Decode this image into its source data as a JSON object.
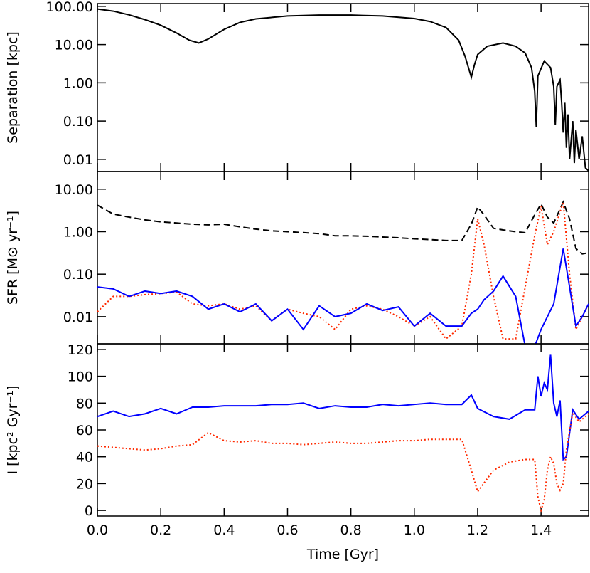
{
  "chart_data": [
    {
      "type": "line",
      "ylabel": "Separation [kpc]",
      "log_y": true,
      "xlim": [
        0,
        1.55
      ],
      "ylim": [
        0.0048,
        118
      ],
      "yticks": [
        {
          "value": 100,
          "label": "100.00"
        },
        {
          "value": 10,
          "label": "10.00"
        },
        {
          "value": 1,
          "label": "1.00"
        },
        {
          "value": 0.1,
          "label": "0.10"
        },
        {
          "value": 0.01,
          "label": "0.01"
        }
      ],
      "x": [
        0,
        0.05,
        0.1,
        0.15,
        0.2,
        0.25,
        0.29,
        0.32,
        0.35,
        0.4,
        0.45,
        0.5,
        0.6,
        0.7,
        0.8,
        0.9,
        1.0,
        1.05,
        1.1,
        1.14,
        1.16,
        1.18,
        1.19,
        1.2,
        1.23,
        1.28,
        1.32,
        1.35,
        1.37,
        1.38,
        1.385,
        1.39,
        1.41,
        1.43,
        1.44,
        1.445,
        1.45,
        1.46,
        1.465,
        1.47,
        1.475,
        1.48,
        1.485,
        1.49,
        1.5,
        1.505,
        1.51,
        1.52,
        1.53,
        1.54,
        1.55
      ],
      "series": [
        {
          "color": "#000000",
          "style": "solid",
          "values": [
            85,
            75,
            60,
            45,
            32,
            20,
            13,
            11,
            14,
            25,
            38,
            47,
            56,
            59,
            59,
            56,
            48,
            40,
            28,
            13,
            5,
            1.4,
            3,
            5.5,
            9,
            11,
            9,
            6,
            2.5,
            0.6,
            0.07,
            1.5,
            3.7,
            2.5,
            0.8,
            0.08,
            0.8,
            1.2,
            0.3,
            0.05,
            0.3,
            0.02,
            0.15,
            0.01,
            0.1,
            0.008,
            0.06,
            0.01,
            0.04,
            0.006,
            0.005
          ]
        }
      ]
    },
    {
      "type": "line",
      "ylabel": "SFR [M⊙ yr⁻¹]",
      "log_y": true,
      "xlim": [
        0,
        1.55
      ],
      "ylim": [
        0.0023,
        26
      ],
      "yticks": [
        {
          "value": 10,
          "label": "10.00"
        },
        {
          "value": 1,
          "label": "1.00"
        },
        {
          "value": 0.1,
          "label": "0.10"
        },
        {
          "value": 0.01,
          "label": "0.01"
        }
      ],
      "x": [
        0,
        0.05,
        0.1,
        0.15,
        0.2,
        0.25,
        0.3,
        0.35,
        0.4,
        0.45,
        0.5,
        0.55,
        0.6,
        0.65,
        0.7,
        0.75,
        0.8,
        0.85,
        0.9,
        0.95,
        1.0,
        1.05,
        1.1,
        1.15,
        1.18,
        1.2,
        1.22,
        1.25,
        1.28,
        1.32,
        1.35,
        1.38,
        1.4,
        1.42,
        1.44,
        1.47,
        1.49,
        1.51,
        1.53,
        1.55
      ],
      "series": [
        {
          "color": "#000000",
          "style": "dashed",
          "values": [
            4.2,
            2.6,
            2.2,
            1.9,
            1.7,
            1.6,
            1.5,
            1.45,
            1.5,
            1.3,
            1.15,
            1.05,
            1.0,
            0.95,
            0.9,
            0.8,
            0.8,
            0.78,
            0.75,
            0.72,
            0.68,
            0.65,
            0.62,
            0.62,
            1.5,
            3.8,
            2.5,
            1.2,
            1.1,
            1.0,
            0.95,
            2.5,
            4.5,
            2.2,
            1.6,
            5.0,
            2.0,
            0.4,
            0.3,
            0.32
          ]
        },
        {
          "color": "#ff2a00",
          "style": "dotted",
          "values": [
            0.013,
            0.03,
            0.03,
            0.033,
            0.035,
            0.038,
            0.02,
            0.018,
            0.02,
            0.015,
            0.018,
            0.008,
            0.015,
            0.012,
            0.01,
            0.005,
            0.015,
            0.018,
            0.015,
            0.01,
            0.006,
            0.01,
            0.003,
            0.006,
            0.1,
            2.0,
            0.5,
            0.03,
            0.003,
            0.003,
            0.05,
            0.8,
            4.0,
            0.5,
            1.0,
            5.0,
            0.1,
            0.005,
            0.01,
            0.02
          ]
        },
        {
          "color": "#0000ff",
          "style": "solid",
          "values": [
            0.05,
            0.045,
            0.03,
            0.04,
            0.035,
            0.04,
            0.03,
            0.015,
            0.02,
            0.013,
            0.02,
            0.008,
            0.015,
            0.005,
            0.018,
            0.01,
            0.012,
            0.02,
            0.014,
            0.017,
            0.006,
            0.012,
            0.006,
            0.006,
            0.012,
            0.015,
            0.025,
            0.04,
            0.09,
            0.03,
            0.002,
            0.002,
            0.005,
            0.01,
            0.02,
            0.4,
            0.05,
            0.006,
            0.01,
            0.02
          ]
        }
      ]
    },
    {
      "type": "line",
      "ylabel": "I [kpc² Gyr⁻¹]",
      "xlabel": "Time [Gyr]",
      "xlim": [
        0,
        1.55
      ],
      "ylim": [
        -4.2,
        124.2
      ],
      "xticks": [
        {
          "value": 0,
          "label": "0.0"
        },
        {
          "value": 0.2,
          "label": "0.2"
        },
        {
          "value": 0.4,
          "label": "0.4"
        },
        {
          "value": 0.6,
          "label": "0.6"
        },
        {
          "value": 0.8,
          "label": "0.8"
        },
        {
          "value": 1,
          "label": "1.0"
        },
        {
          "value": 1.2,
          "label": "1.2"
        },
        {
          "value": 1.4,
          "label": "1.4"
        }
      ],
      "yticks": [
        0,
        20,
        40,
        60,
        80,
        100,
        120
      ],
      "x": [
        0,
        0.05,
        0.1,
        0.15,
        0.2,
        0.25,
        0.3,
        0.35,
        0.4,
        0.45,
        0.5,
        0.55,
        0.6,
        0.65,
        0.7,
        0.75,
        0.8,
        0.85,
        0.9,
        0.95,
        1.0,
        1.05,
        1.1,
        1.15,
        1.18,
        1.2,
        1.25,
        1.3,
        1.35,
        1.38,
        1.39,
        1.4,
        1.41,
        1.42,
        1.43,
        1.44,
        1.45,
        1.46,
        1.47,
        1.48,
        1.5,
        1.52,
        1.55
      ],
      "series": [
        {
          "color": "#0000ff",
          "style": "solid",
          "values": [
            70,
            74,
            70,
            72,
            76,
            72,
            77,
            77,
            78,
            78,
            78,
            79,
            79,
            80,
            76,
            78,
            77,
            77,
            79,
            78,
            79,
            80,
            79,
            79,
            86,
            76,
            70,
            68,
            75,
            75,
            100,
            85,
            95,
            90,
            116,
            80,
            70,
            82,
            38,
            40,
            75,
            68,
            74
          ]
        },
        {
          "color": "#ff2a00",
          "style": "dotted",
          "values": [
            48,
            47,
            46,
            45,
            46,
            48,
            49,
            58,
            52,
            51,
            52,
            50,
            50,
            49,
            50,
            51,
            50,
            50,
            51,
            52,
            52,
            53,
            53,
            53,
            30,
            14,
            30,
            36,
            38,
            38,
            10,
            0,
            8,
            30,
            40,
            35,
            20,
            15,
            20,
            45,
            73,
            66,
            72
          ]
        }
      ]
    }
  ]
}
